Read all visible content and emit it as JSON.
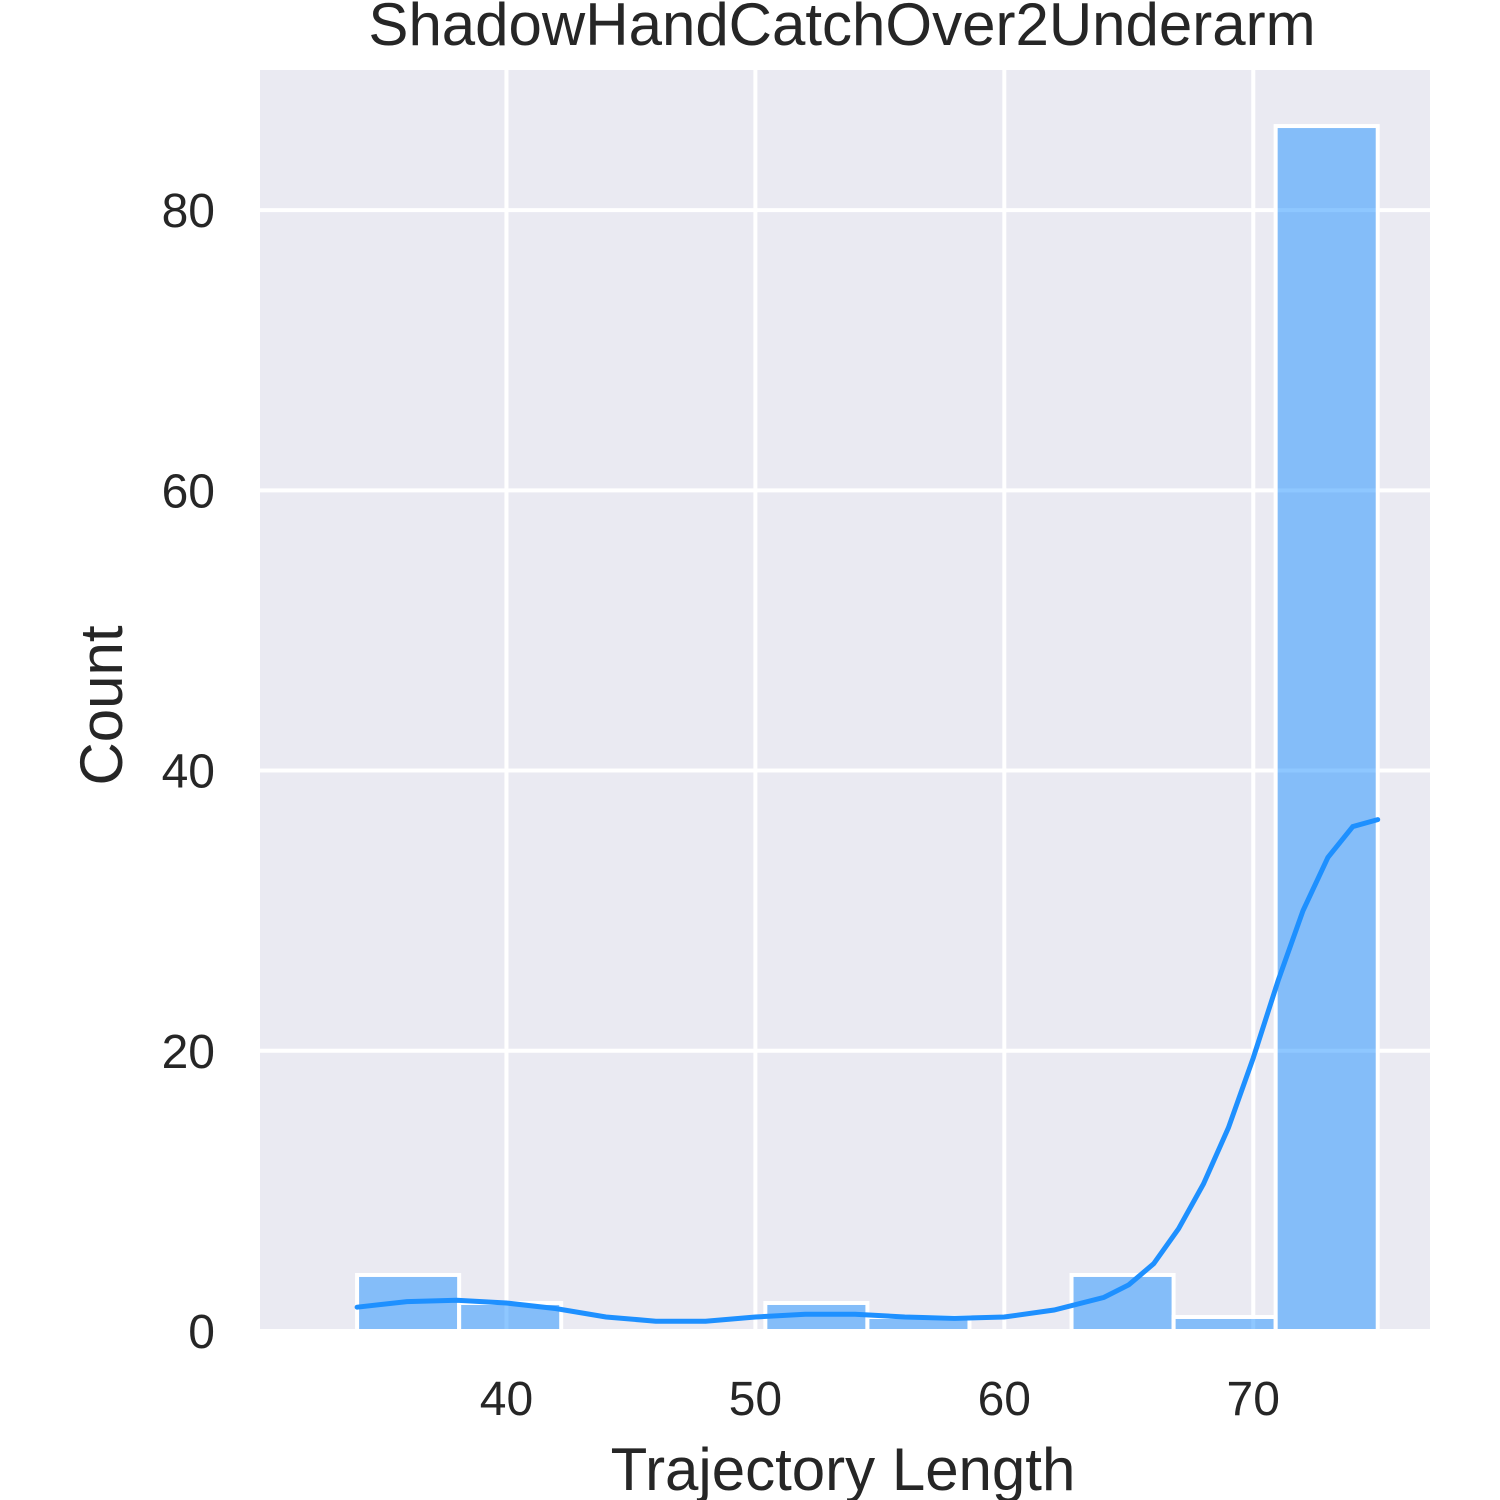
{
  "chart_data": {
    "type": "bar",
    "title": "ShadowHandCatchOver2Underarm",
    "xlabel": "Trajectory Length",
    "ylabel": "Count",
    "xlim": [
      30.1,
      77.1
    ],
    "ylim": [
      0,
      90
    ],
    "xticks": [
      40,
      50,
      60,
      70
    ],
    "yticks": [
      0,
      20,
      40,
      60,
      80
    ],
    "grid": true,
    "bar_color": "#1e90ff",
    "bar_opacity": 0.5,
    "kde_color": "#1e90ff",
    "background_color": "#eaeaf2",
    "bins": [
      {
        "x0": 34.0,
        "x1": 38.1,
        "count": 4
      },
      {
        "x0": 38.1,
        "x1": 42.2,
        "count": 2
      },
      {
        "x0": 42.2,
        "x1": 46.3,
        "count": 0
      },
      {
        "x0": 46.3,
        "x1": 50.4,
        "count": 0
      },
      {
        "x0": 50.4,
        "x1": 54.5,
        "count": 2
      },
      {
        "x0": 54.5,
        "x1": 58.6,
        "count": 1
      },
      {
        "x0": 58.6,
        "x1": 62.7,
        "count": 0
      },
      {
        "x0": 62.7,
        "x1": 66.8,
        "count": 4
      },
      {
        "x0": 66.8,
        "x1": 70.9,
        "count": 1
      },
      {
        "x0": 70.9,
        "x1": 75.0,
        "count": 86
      }
    ],
    "kde": {
      "x": [
        34,
        36,
        38,
        40,
        42,
        44,
        46,
        48,
        50,
        52,
        54,
        56,
        58,
        60,
        62,
        64,
        65,
        66,
        67,
        68,
        69,
        70,
        71,
        72,
        73,
        74,
        75
      ],
      "y": [
        1.7,
        2.1,
        2.2,
        2.0,
        1.6,
        1.0,
        0.7,
        0.7,
        1.0,
        1.2,
        1.2,
        1.0,
        0.9,
        1.0,
        1.5,
        2.4,
        3.3,
        4.8,
        7.3,
        10.5,
        14.5,
        19.5,
        25.0,
        30.0,
        33.8,
        36.0,
        36.5
      ]
    }
  }
}
